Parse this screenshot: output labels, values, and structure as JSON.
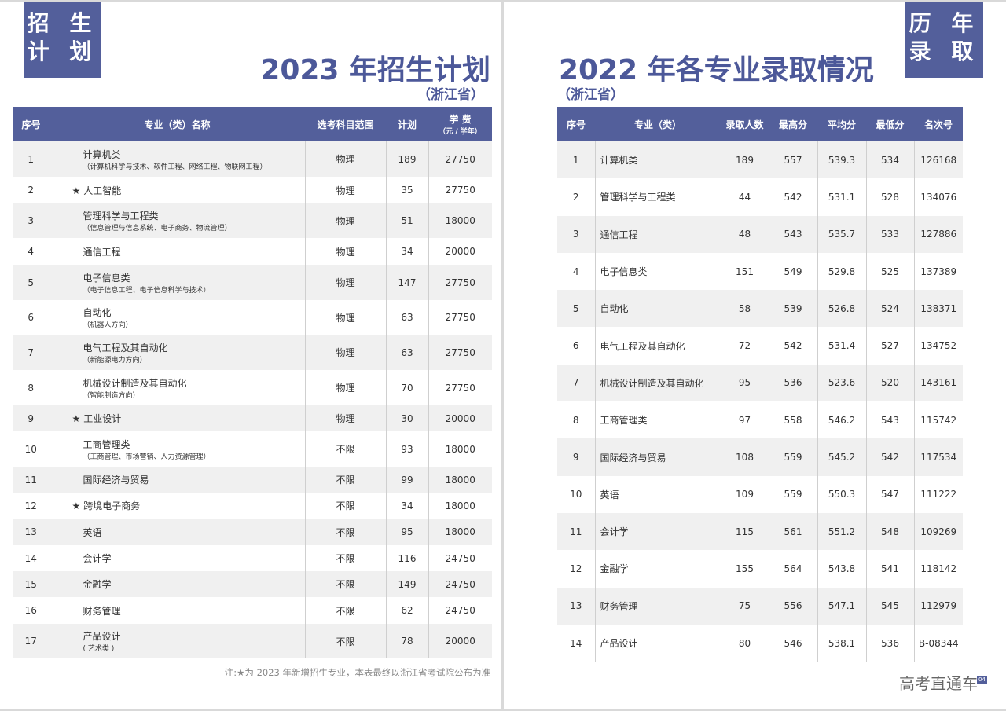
{
  "left": {
    "tag": [
      "招 生",
      "计 划"
    ],
    "title": "2023 年招生计划",
    "subtitle": "（浙江省）",
    "headers": {
      "seq": "序号",
      "name": "专业（类）名称",
      "subject": "选考科目范围",
      "plan": "计划",
      "fee": "学 费",
      "fee_unit": "（元 / 学年）"
    },
    "rows": [
      {
        "seq": "1",
        "name": "计算机类",
        "detail": "（计算机科学与技术、软件工程、网络工程、物联网工程）",
        "star": false,
        "subject": "物理",
        "plan": "189",
        "fee": "27750"
      },
      {
        "seq": "2",
        "name": "人工智能",
        "detail": "",
        "star": true,
        "subject": "物理",
        "plan": "35",
        "fee": "27750"
      },
      {
        "seq": "3",
        "name": "管理科学与工程类",
        "detail": "（信息管理与信息系统、电子商务、物流管理）",
        "star": false,
        "subject": "物理",
        "plan": "51",
        "fee": "18000"
      },
      {
        "seq": "4",
        "name": "通信工程",
        "detail": "",
        "star": false,
        "subject": "物理",
        "plan": "34",
        "fee": "20000"
      },
      {
        "seq": "5",
        "name": "电子信息类",
        "detail": "（电子信息工程、电子信息科学与技术）",
        "star": false,
        "subject": "物理",
        "plan": "147",
        "fee": "27750"
      },
      {
        "seq": "6",
        "name": "自动化",
        "detail": "（机器人方向）",
        "star": false,
        "subject": "物理",
        "plan": "63",
        "fee": "27750"
      },
      {
        "seq": "7",
        "name": "电气工程及其自动化",
        "detail": "（新能源电力方向）",
        "star": false,
        "subject": "物理",
        "plan": "63",
        "fee": "27750"
      },
      {
        "seq": "8",
        "name": "机械设计制造及其自动化",
        "detail": "（智能制造方向）",
        "star": false,
        "subject": "物理",
        "plan": "70",
        "fee": "27750"
      },
      {
        "seq": "9",
        "name": "工业设计",
        "detail": "",
        "star": true,
        "subject": "物理",
        "plan": "30",
        "fee": "20000"
      },
      {
        "seq": "10",
        "name": "工商管理类",
        "detail": "（工商管理、市场营销、人力资源管理）",
        "star": false,
        "subject": "不限",
        "plan": "93",
        "fee": "18000"
      },
      {
        "seq": "11",
        "name": "国际经济与贸易",
        "detail": "",
        "star": false,
        "subject": "不限",
        "plan": "99",
        "fee": "18000"
      },
      {
        "seq": "12",
        "name": "跨境电子商务",
        "detail": "",
        "star": true,
        "subject": "不限",
        "plan": "34",
        "fee": "18000"
      },
      {
        "seq": "13",
        "name": "英语",
        "detail": "",
        "star": false,
        "subject": "不限",
        "plan": "95",
        "fee": "18000"
      },
      {
        "seq": "14",
        "name": "会计学",
        "detail": "",
        "star": false,
        "subject": "不限",
        "plan": "116",
        "fee": "24750"
      },
      {
        "seq": "15",
        "name": "金融学",
        "detail": "",
        "star": false,
        "subject": "不限",
        "plan": "149",
        "fee": "24750"
      },
      {
        "seq": "16",
        "name": "财务管理",
        "detail": "",
        "star": false,
        "subject": "不限",
        "plan": "62",
        "fee": "24750"
      },
      {
        "seq": "17",
        "name": "产品设计",
        "detail": "( 艺术类 )",
        "star": false,
        "subject": "不限",
        "plan": "78",
        "fee": "20000"
      }
    ],
    "star_symbol": "★",
    "note": "注:★为 2023 年新增招生专业，本表最终以浙江省考试院公布为准"
  },
  "right": {
    "tag": [
      "历 年",
      "录 取"
    ],
    "title": "2022 年各专业录取情况",
    "subtitle": "（浙江省）",
    "headers": [
      "序号",
      "专业（类）",
      "录取人数",
      "最高分",
      "平均分",
      "最低分",
      "名次号"
    ],
    "rows": [
      [
        "1",
        "计算机类",
        "189",
        "557",
        "539.3",
        "534",
        "126168"
      ],
      [
        "2",
        "管理科学与工程类",
        "44",
        "542",
        "531.1",
        "528",
        "134076"
      ],
      [
        "3",
        "通信工程",
        "48",
        "543",
        "535.7",
        "533",
        "127886"
      ],
      [
        "4",
        "电子信息类",
        "151",
        "549",
        "529.8",
        "525",
        "137389"
      ],
      [
        "5",
        "自动化",
        "58",
        "539",
        "526.8",
        "524",
        "138371"
      ],
      [
        "6",
        "电气工程及其自动化",
        "72",
        "542",
        "531.4",
        "527",
        "134752"
      ],
      [
        "7",
        "机械设计制造及其自动化",
        "95",
        "536",
        "523.6",
        "520",
        "143161"
      ],
      [
        "8",
        "工商管理类",
        "97",
        "558",
        "546.2",
        "543",
        "115742"
      ],
      [
        "9",
        "国际经济与贸易",
        "108",
        "559",
        "545.2",
        "542",
        "117534"
      ],
      [
        "10",
        "英语",
        "109",
        "559",
        "550.3",
        "547",
        "111222"
      ],
      [
        "11",
        "会计学",
        "115",
        "561",
        "551.2",
        "548",
        "109269"
      ],
      [
        "12",
        "金融学",
        "155",
        "564",
        "543.8",
        "541",
        "118142"
      ],
      [
        "13",
        "财务管理",
        "75",
        "556",
        "547.1",
        "545",
        "112979"
      ],
      [
        "14",
        "产品设计",
        "80",
        "546",
        "538.1",
        "536",
        "B-08344"
      ]
    ],
    "watermark": "高考直通车",
    "page_number": "04"
  },
  "colors": {
    "accent": "#535f9b",
    "row_alt": "#f0f0f0"
  }
}
